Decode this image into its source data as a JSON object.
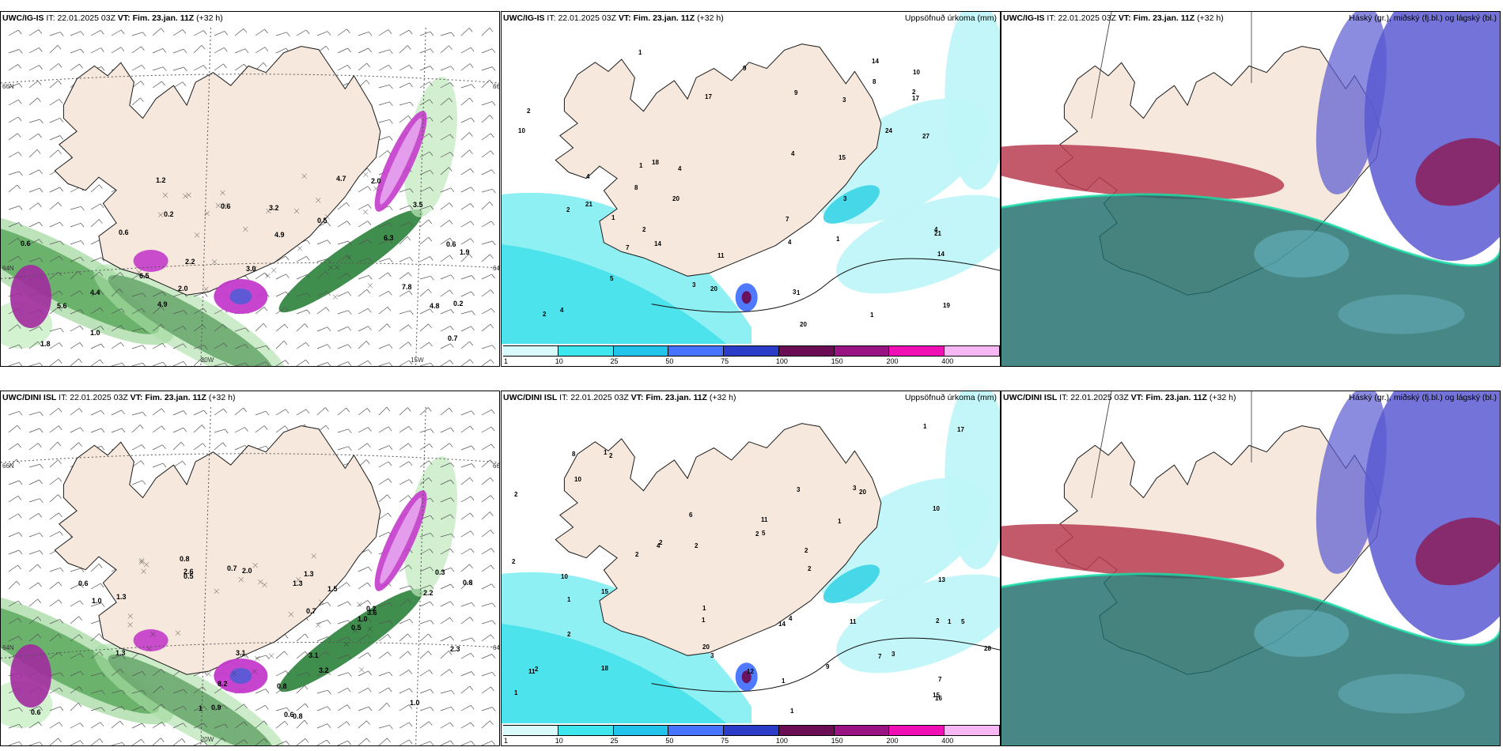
{
  "panels": [
    {
      "model": "UWC/IG-IS",
      "it_label": "IT:",
      "it_value": "22.01.2025 03Z",
      "vt_label": "VT:",
      "vt_value": "Fim. 23.jan. 11Z",
      "lead": "(+32 h)",
      "right_title": "",
      "kind": "precip-wind",
      "axis_labels": [
        "66N",
        "66N",
        "64N",
        "64N",
        "20W",
        "15W"
      ],
      "point_values": [
        "0.2",
        "0.6",
        "0.5",
        "1.9",
        "2.2",
        "0.2",
        "2.0",
        "4.7",
        "4.8",
        "3.5",
        "0.6",
        "7.8",
        "6.3",
        "4.9",
        "5.6",
        "3.0",
        "6.5",
        "0.6",
        "1.2",
        "0.6",
        "0.7",
        "3.2",
        "1.0",
        "4.4",
        "4.9",
        "2.0",
        "1.8"
      ]
    },
    {
      "model": "UWC/IG-IS",
      "it_label": "IT:",
      "it_value": "22.01.2025 03Z",
      "vt_label": "VT:",
      "vt_value": "Fim. 23.jan. 11Z",
      "lead": "(+32 h)",
      "right_title": "Uppsöfnuð úrkoma (mm)",
      "kind": "accum",
      "point_values": [
        "1",
        "2",
        "3",
        "2",
        "4",
        "1",
        "2",
        "4",
        "21",
        "24",
        "14",
        "14",
        "20",
        "20",
        "4",
        "27",
        "9",
        "1",
        "4",
        "11",
        "2",
        "10",
        "9",
        "17",
        "7",
        "14",
        "18",
        "19",
        "21",
        "17",
        "20",
        "15",
        "3",
        "5",
        "2",
        "7",
        "10",
        "8",
        "8",
        "4",
        "3",
        "1",
        "1",
        "1",
        "4",
        "3"
      ]
    },
    {
      "model": "UWC/IG-IS",
      "it_label": "IT:",
      "it_value": "22.01.2025 03Z",
      "vt_label": "VT:",
      "vt_value": "Fim. 23.jan. 11Z",
      "lead": "(+32 h)",
      "right_title": "Háský (gr.), miðský (fj.bl.) og lágský (bl.)",
      "kind": "cloud"
    },
    {
      "model": "UWC/DINI ISL",
      "it_label": "IT:",
      "it_value": "22.01.2025 03Z",
      "vt_label": "VT:",
      "vt_value": "Fim. 23.jan. 11Z",
      "lead": "(+32 h)",
      "right_title": "",
      "kind": "precip-wind",
      "axis_labels": [
        "66N",
        "66N",
        "64N",
        "64N",
        "20W"
      ],
      "point_values": [
        "0.6",
        "0.8",
        "0.7",
        "0.9",
        "0.5",
        "1.0",
        "3.1",
        "2.6",
        "1.5",
        "3.1",
        "1.3",
        "0.8",
        "1.3",
        "1.3",
        "1.0",
        "0.6",
        "0.3",
        "0.2",
        "0.6",
        "1",
        "3.2",
        "2.3",
        "8.2",
        "2.2",
        "1.3",
        "0.8",
        "3.6",
        "0.5",
        "2.0",
        "0.7",
        "0.8",
        "1.0"
      ]
    },
    {
      "model": "UWC/DINI ISL",
      "it_label": "IT:",
      "it_value": "22.01.2025 03Z",
      "vt_label": "VT:",
      "vt_value": "Fim. 23.jan. 11Z",
      "lead": "(+32 h)",
      "right_title": "Uppsöfnuð úrkoma (mm)",
      "kind": "accum",
      "point_values": [
        "3",
        "2",
        "1",
        "1",
        "2",
        "2",
        "18",
        "2",
        "17",
        "14",
        "16",
        "11",
        "11",
        "20",
        "10",
        "5",
        "1",
        "1",
        "2",
        "2",
        "1",
        "1",
        "1",
        "2",
        "2",
        "2",
        "28",
        "3",
        "3",
        "5",
        "1",
        "1",
        "2",
        "2",
        "4",
        "13",
        "12",
        "8",
        "20",
        "15",
        "10",
        "7",
        "11",
        "15",
        "3",
        "4",
        "6",
        "1",
        "2",
        "7",
        "9",
        "10"
      ]
    },
    {
      "model": "UWC/DINI ISL",
      "it_label": "IT:",
      "it_value": "22.01.2025 03Z",
      "vt_label": "VT:",
      "vt_value": "Fim. 23.jan. 11Z",
      "lead": "(+32 h)",
      "right_title": "Háský (gr.), miðský (fj.bl.) og lágský (bl.)",
      "kind": "cloud"
    }
  ],
  "colorbar": {
    "ticks": [
      "1",
      "10",
      "25",
      "50",
      "75",
      "100",
      "150",
      "200",
      "400"
    ],
    "colors": [
      "#d8fafa",
      "#3ee6ee",
      "#22c4ec",
      "#4673ff",
      "#2a3cc8",
      "#6a0d55",
      "#9a1382",
      "#f00fb4",
      "#f7b6f4"
    ]
  },
  "colors": {
    "land": "#f6e8dc",
    "coast": "#1a1a1a",
    "light_cyan": "#bff6f8",
    "cloud_high": "#1f6c6a",
    "cloud_mid": "#5a5ad2",
    "cloud_low": "#b73d52"
  }
}
